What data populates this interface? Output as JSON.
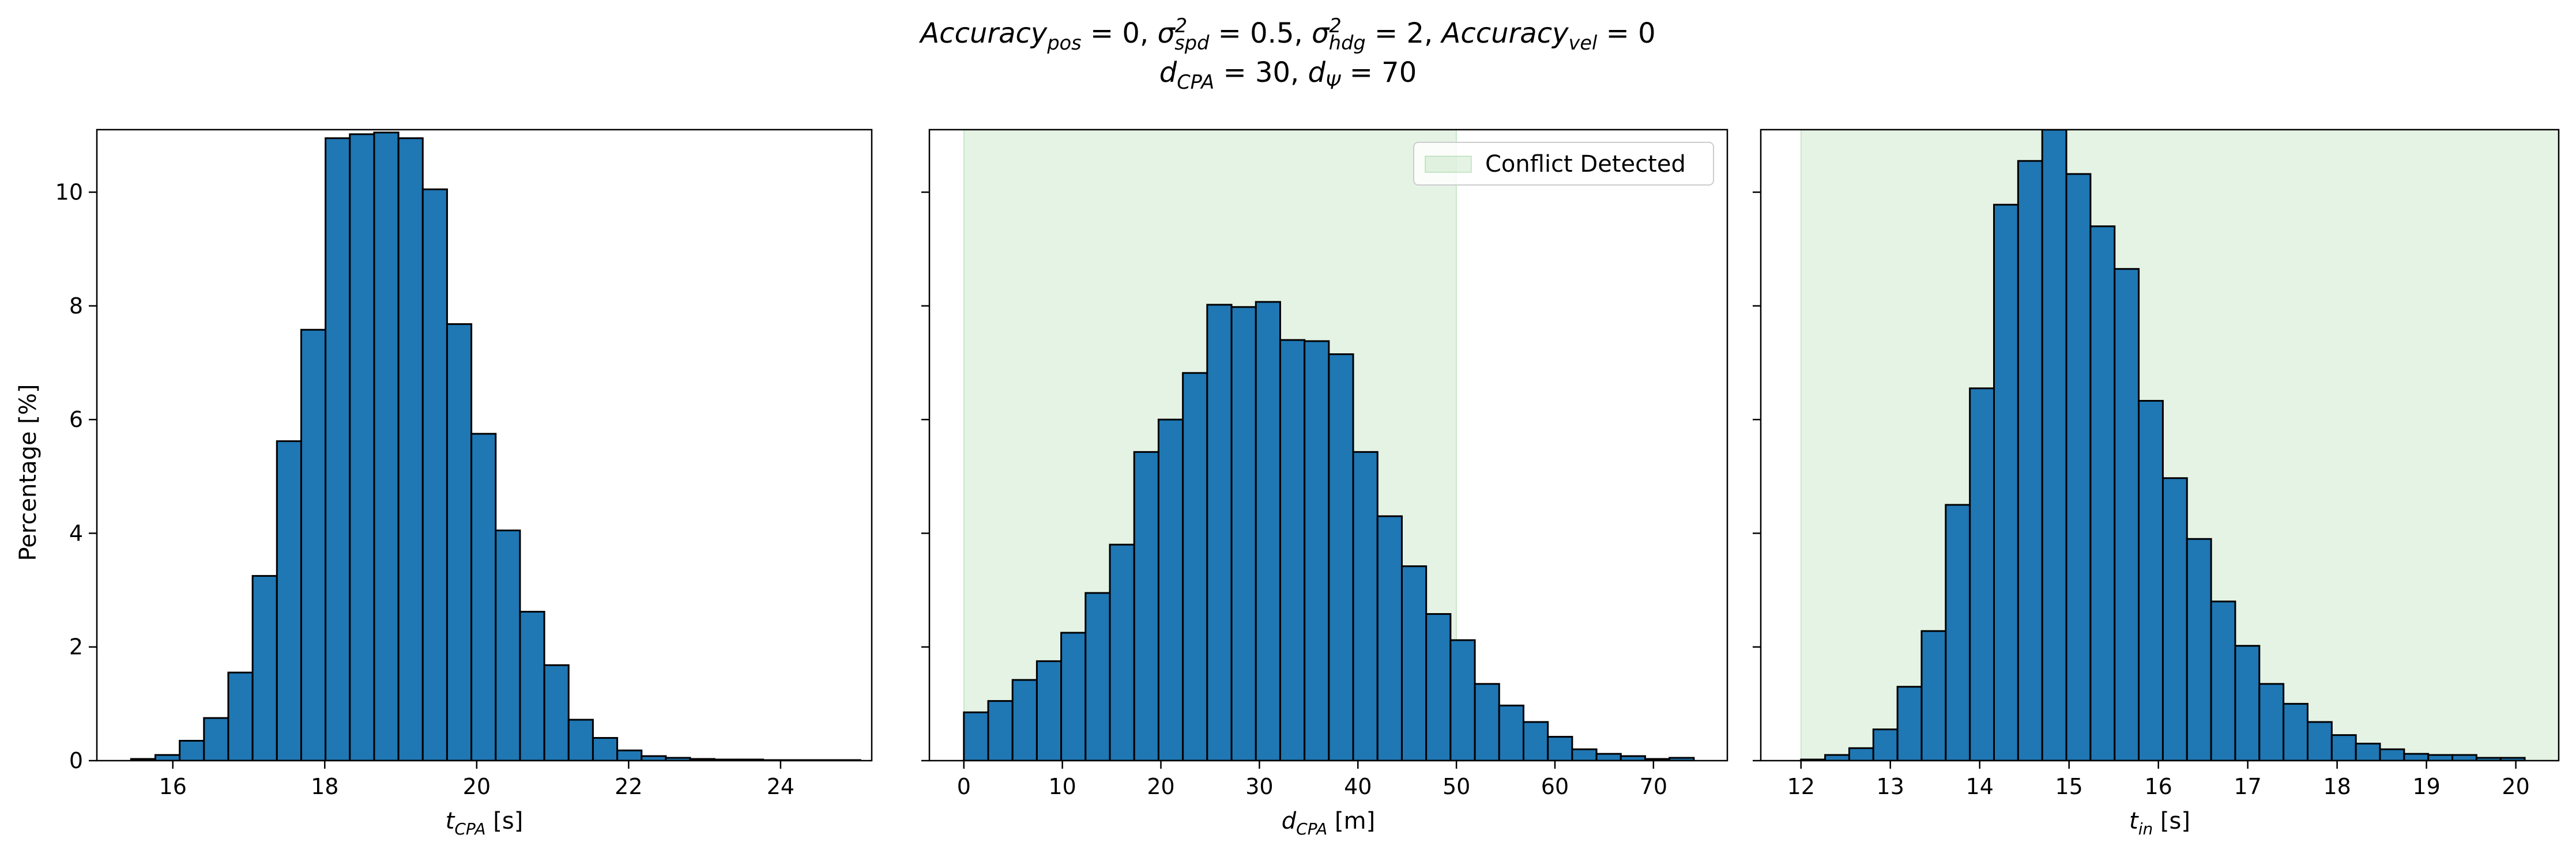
{
  "figure": {
    "title_parts": [
      {
        "base": "Accuracy",
        "sub": "pos",
        "after": " = 0, "
      },
      {
        "base": "σ",
        "sup": "2",
        "sub": "spd",
        "after": " = 0.5, "
      },
      {
        "base": "σ",
        "sup": "2",
        "sub": "hdg",
        "after": " = 2, "
      },
      {
        "base": "Accuracy",
        "sub": "vel",
        "after": " = 0"
      }
    ],
    "title_line2_parts": [
      {
        "base": "d",
        "sub": "CPA",
        "after": " = 30, "
      },
      {
        "base": "d",
        "sub": "Ψ",
        "after": " = 70"
      }
    ],
    "ylabel": "Percentage [%]"
  },
  "chart_data": [
    {
      "type": "bar",
      "xlabel_base": "t",
      "xlabel_sub": "CPA",
      "xlabel_unit": " [s]",
      "xlim": [
        15.0,
        25.2
      ],
      "ylim": [
        0,
        11.1
      ],
      "xticks": [
        16,
        18,
        20,
        22,
        24
      ],
      "yticks": [
        0,
        2,
        4,
        6,
        8,
        10
      ],
      "bin_start": 15.45,
      "bin_width": 0.32,
      "values": [
        0.03,
        0.1,
        0.35,
        0.75,
        1.55,
        3.25,
        5.62,
        7.58,
        10.95,
        11.02,
        11.05,
        10.95,
        10.05,
        7.68,
        5.75,
        4.05,
        2.62,
        1.68,
        0.72,
        0.4,
        0.18,
        0.08,
        0.05,
        0.03,
        0.02,
        0.02,
        0.01,
        0.01,
        0.01,
        0.01
      ],
      "shade": null,
      "legend": null
    },
    {
      "type": "bar",
      "xlabel_base": "d",
      "xlabel_sub": "CPA",
      "xlabel_unit": " [m]",
      "xlim": [
        -3.5,
        77.5
      ],
      "ylim": [
        0,
        11.1
      ],
      "xticks": [
        0,
        10,
        20,
        30,
        40,
        50,
        60,
        70
      ],
      "yticks": [
        0,
        2,
        4,
        6,
        8,
        10
      ],
      "bin_start": 0,
      "bin_width": 2.47,
      "values": [
        0.85,
        1.05,
        1.42,
        1.75,
        2.25,
        2.95,
        3.8,
        5.43,
        6.0,
        6.82,
        8.02,
        7.98,
        8.07,
        7.4,
        7.38,
        7.15,
        5.43,
        4.3,
        3.42,
        2.58,
        2.12,
        1.35,
        0.97,
        0.68,
        0.42,
        0.2,
        0.12,
        0.08,
        0.03,
        0.05
      ],
      "shade": [
        0,
        50
      ],
      "legend": {
        "label": "Conflict Detected",
        "placement": "top-right"
      }
    },
    {
      "type": "bar",
      "xlabel_base": "t",
      "xlabel_sub": "in",
      "xlabel_unit": " [s]",
      "xlim": [
        11.55,
        20.48
      ],
      "ylim": [
        0,
        11.1
      ],
      "xticks": [
        12,
        13,
        14,
        15,
        16,
        17,
        18,
        19,
        20
      ],
      "yticks": [
        0,
        2,
        4,
        6,
        8,
        10
      ],
      "bin_start": 12.0,
      "bin_width": 0.27,
      "values": [
        0.02,
        0.1,
        0.22,
        0.55,
        1.3,
        2.28,
        4.5,
        6.55,
        9.78,
        10.55,
        11.1,
        10.32,
        9.4,
        8.65,
        6.33,
        4.97,
        3.9,
        2.8,
        2.02,
        1.35,
        1.0,
        0.68,
        0.45,
        0.3,
        0.2,
        0.12,
        0.1,
        0.1,
        0.05,
        0.05
      ],
      "shade": [
        12,
        20.5
      ],
      "legend": null
    }
  ]
}
